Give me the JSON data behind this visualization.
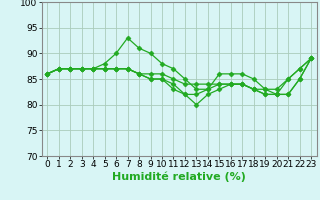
{
  "x": [
    0,
    1,
    2,
    3,
    4,
    5,
    6,
    7,
    8,
    9,
    10,
    11,
    12,
    13,
    14,
    15,
    16,
    17,
    18,
    19,
    20,
    21,
    22,
    23
  ],
  "series": [
    [
      86,
      87,
      87,
      87,
      87,
      88,
      90,
      93,
      91,
      90,
      88,
      87,
      85,
      83,
      83,
      86,
      86,
      86,
      85,
      83,
      83,
      85,
      87,
      89
    ],
    [
      86,
      87,
      87,
      87,
      87,
      87,
      87,
      87,
      86,
      85,
      85,
      83,
      82,
      80,
      82,
      83,
      84,
      84,
      83,
      82,
      82,
      82,
      85,
      89
    ],
    [
      86,
      87,
      87,
      87,
      87,
      87,
      87,
      87,
      86,
      85,
      85,
      84,
      82,
      82,
      83,
      84,
      84,
      84,
      83,
      82,
      82,
      82,
      85,
      89
    ],
    [
      86,
      87,
      87,
      87,
      87,
      87,
      87,
      87,
      86,
      86,
      86,
      85,
      84,
      84,
      84,
      84,
      84,
      84,
      83,
      83,
      82,
      85,
      87,
      89
    ]
  ],
  "line_color": "#22aa22",
  "marker": "D",
  "markersize": 2.5,
  "linewidth": 0.9,
  "bg_color": "#d8f5f5",
  "grid_color": "#aaccbb",
  "xlabel": "Humidité relative (%)",
  "xlim": [
    -0.5,
    23.5
  ],
  "ylim": [
    70,
    100
  ],
  "yticks": [
    70,
    75,
    80,
    85,
    90,
    95,
    100
  ],
  "xtick_labels": [
    "0",
    "1",
    "2",
    "3",
    "4",
    "5",
    "6",
    "7",
    "8",
    "9",
    "10",
    "11",
    "12",
    "13",
    "14",
    "15",
    "16",
    "17",
    "18",
    "19",
    "20",
    "21",
    "22",
    "23"
  ],
  "tick_fontsize": 6.5,
  "xlabel_fontsize": 8
}
